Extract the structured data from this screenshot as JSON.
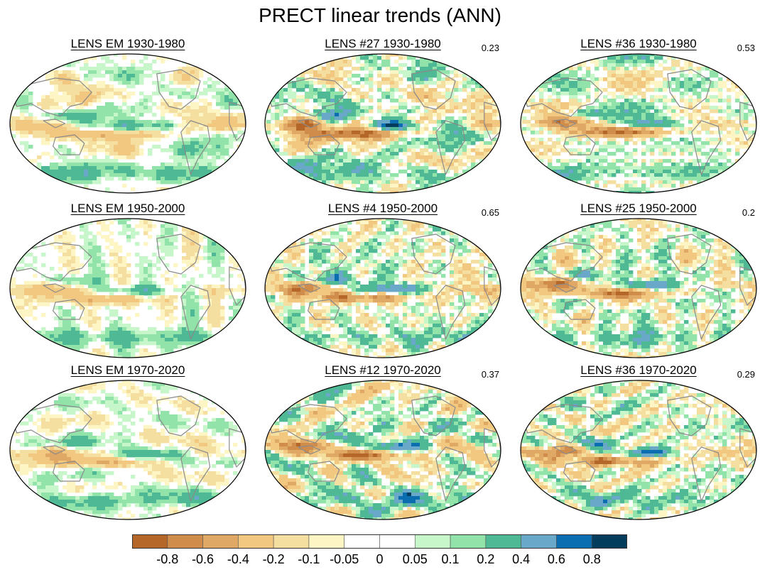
{
  "title": "PRECT linear trends (ANN)",
  "panels": [
    {
      "id": "p1",
      "title": "LENS EM 1930-1980",
      "corr": "",
      "pattern": "em",
      "seed": 11
    },
    {
      "id": "p2",
      "title": "LENS #27 1930-1980",
      "corr": "0.23",
      "pattern": "strong",
      "seed": 27
    },
    {
      "id": "p3",
      "title": "LENS #36 1930-1980",
      "corr": "0.53",
      "pattern": "strong",
      "seed": 36
    },
    {
      "id": "p4",
      "title": "LENS EM 1950-2000",
      "corr": "",
      "pattern": "em",
      "seed": 50
    },
    {
      "id": "p5",
      "title": "LENS #4 1950-2000",
      "corr": "0.65",
      "pattern": "strong",
      "seed": 4
    },
    {
      "id": "p6",
      "title": "LENS #25 1950-2000",
      "corr": "0.2",
      "pattern": "strong",
      "seed": 25
    },
    {
      "id": "p7",
      "title": "LENS EM 1970-2020",
      "corr": "",
      "pattern": "em",
      "seed": 70
    },
    {
      "id": "p8",
      "title": "LENS #12 1970-2020",
      "corr": "0.37",
      "pattern": "strong",
      "seed": 12
    },
    {
      "id": "p9",
      "title": "LENS #36 1970-2020",
      "corr": "0.29",
      "pattern": "strong",
      "seed": 63
    }
  ],
  "colorbar": {
    "colors": [
      "#b5672a",
      "#cf8c4a",
      "#e0a865",
      "#f2c880",
      "#f5dfa0",
      "#fdf5c4",
      "#ffffff",
      "#ffffff",
      "#c6f6c9",
      "#92e3aa",
      "#4fb894",
      "#69a8c9",
      "#0a6eb0",
      "#033d5e"
    ],
    "labels": [
      "-0.8",
      "-0.6",
      "-0.4",
      "-0.2",
      "-0.1",
      "-0.05",
      "0",
      "0.05",
      "0.1",
      "0.2",
      "0.4",
      "0.6",
      "0.8"
    ]
  },
  "colors": {
    "coastline": "#8a8a8a",
    "outline": "#000000"
  }
}
